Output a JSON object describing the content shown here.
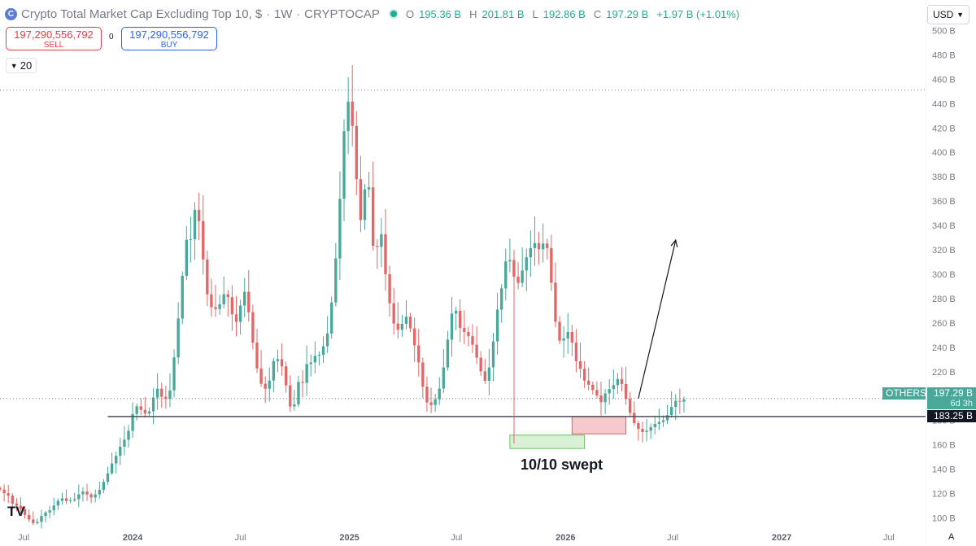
{
  "header": {
    "icon": "crypto-logo-icon",
    "title": "Crypto Total Market Cap Excluding Top 10, $",
    "interval": "1W",
    "exchange": "CRYPTOCAP",
    "ohlc": [
      {
        "key": "O",
        "value": "195.36 B"
      },
      {
        "key": "H",
        "value": "201.81 B"
      },
      {
        "key": "L",
        "value": "192.86 B"
      },
      {
        "key": "C",
        "value": "197.29 B"
      }
    ],
    "change": "+1.97 B (+1.01%)"
  },
  "trade": {
    "sell_price": "197,290,556,792",
    "sell_label": "SELL",
    "spread": "0",
    "buy_price": "197,290,556,792",
    "buy_label": "BUY"
  },
  "indicator_value": "20",
  "currency": "USD",
  "annotation": "10/10 swept",
  "labels": {
    "symbol": "OTHERS",
    "last_price": "197.29 B",
    "countdown": "6d 3h",
    "hline_price": "183.25 B"
  },
  "colors": {
    "up": "#22ab94",
    "down": "#f23645",
    "candle_up": "#4aa89a",
    "candle_down": "#e06868",
    "support_line": "#4b4f5a",
    "zone_green": "#d8f0d4",
    "zone_red": "#f6c9cc"
  },
  "tv_logo": "TV",
  "auto_label": "A",
  "chart_data": {
    "type": "candlestick",
    "title": "Crypto Total Market Cap Excluding Top 10, $",
    "interval": "1W",
    "unit": "B USD",
    "y_axis_ticks": [
      100,
      120,
      140,
      160,
      180,
      200,
      220,
      240,
      260,
      280,
      300,
      320,
      340,
      360,
      380,
      400,
      420,
      440,
      460,
      480,
      500
    ],
    "y_tick_labels": [
      "100 B",
      "120 B",
      "140 B",
      "160 B",
      "180 B",
      "200 B",
      "220 B",
      "240 B",
      "260 B",
      "280 B",
      "300 B",
      "320 B",
      "340 B",
      "360 B",
      "380 B",
      "400 B",
      "420 B",
      "440 B",
      "460 B",
      "480 B",
      "500 B"
    ],
    "ylim": [
      91,
      505
    ],
    "x_axis_labels": [
      "Jul",
      "2024",
      "Jul",
      "2025",
      "Jul",
      "2026",
      "Jul",
      "2027",
      "Jul"
    ],
    "x_axis_dates": [
      "2023-07-01",
      "2024-01-01",
      "2024-07-01",
      "2025-01-01",
      "2025-07-01",
      "2026-01-01",
      "2026-07-01",
      "2027-01-01",
      "2027-07-01"
    ],
    "xlim": [
      "2023-05-22",
      "2027-09-01"
    ],
    "first_candle_date": "2023-05-22",
    "candle_interval_days": 7,
    "closes": [
      123.3,
      120.3,
      118.3,
      111.8,
      110.0,
      107.3,
      102.4,
      98.7,
      95.8,
      96.8,
      101.6,
      104.5,
      106.3,
      110.2,
      114.1,
      116.1,
      113.9,
      114.5,
      115.4,
      119.4,
      121.7,
      119.3,
      116.8,
      119.3,
      123.0,
      129.6,
      136.6,
      144.7,
      151.0,
      158.5,
      164.2,
      171.5,
      185.3,
      191.6,
      188.7,
      185.6,
      187.4,
      198.8,
      206.1,
      199.4,
      197.6,
      204.7,
      231.7,
      263.7,
      298.7,
      328.2,
      328.7,
      352.8,
      343.6,
      312.1,
      283.5,
      272.9,
      271.4,
      275.3,
      283.6,
      281.1,
      267.1,
      260.9,
      274.3,
      285.6,
      268.8,
      243.9,
      222.7,
      210.1,
      206.0,
      212.7,
      228.7,
      230.3,
      224.4,
      208.8,
      191.4,
      193.2,
      211.7,
      210.9,
      226.3,
      227.6,
      233.0,
      233.8,
      240.9,
      251.4,
      276.8,
      313.0,
      361.9,
      417.4,
      441.7,
      421.7,
      378.0,
      344.5,
      369.6,
      371.3,
      323.3,
      322.5,
      332.8,
      300.0,
      276.2,
      259.5,
      254.4,
      259.3,
      265.2,
      255.6,
      241.6,
      227.6,
      207.7,
      194.8,
      192.7,
      197.3,
      206.2,
      223.5,
      246.3,
      267.7,
      270.0,
      255.9,
      252.6,
      249.2,
      242.2,
      231.5,
      220.3,
      212.5,
      223.5,
      244.9,
      271.0,
      288.4,
      310.5,
      311.7,
      298.0,
      292.9,
      303.1,
      313.9,
      321.4,
      325.5,
      320.5,
      325.2,
      321.4,
      293.1,
      261.0,
      245.5,
      247.3,
      252.6,
      243.9,
      228.6,
      222.4,
      212.7,
      209.3,
      205.0,
      200.5,
      195.0,
      202.2,
      205.8,
      209.0,
      214.0,
      209.9,
      197.7,
      186.2,
      177.8,
      173.1,
      170.5,
      171.5,
      174.5,
      177.1,
      178.7,
      180.1,
      184.4,
      191.1,
      196.1,
      195.4,
      197.3
    ],
    "key_level": 183.25,
    "last_price": 197.29,
    "annotations": [
      {
        "type": "zone",
        "color": "green",
        "from": "2025-09-29",
        "to": "2026-02-02",
        "low": 157,
        "high": 168
      },
      {
        "type": "zone",
        "color": "red",
        "from": "2026-01-12",
        "to": "2026-04-13",
        "low": 169,
        "high": 183.25
      },
      {
        "type": "arrow",
        "from_date": "2026-05-04",
        "from_price": 198,
        "to_date": "2026-07-06",
        "to_price": 328
      },
      {
        "type": "hline",
        "style": "dotted",
        "price": 451
      },
      {
        "type": "hline",
        "style": "dotted",
        "price": 198
      },
      {
        "type": "vline",
        "date": "2025-10-06",
        "low": 161,
        "high": 320
      }
    ]
  }
}
